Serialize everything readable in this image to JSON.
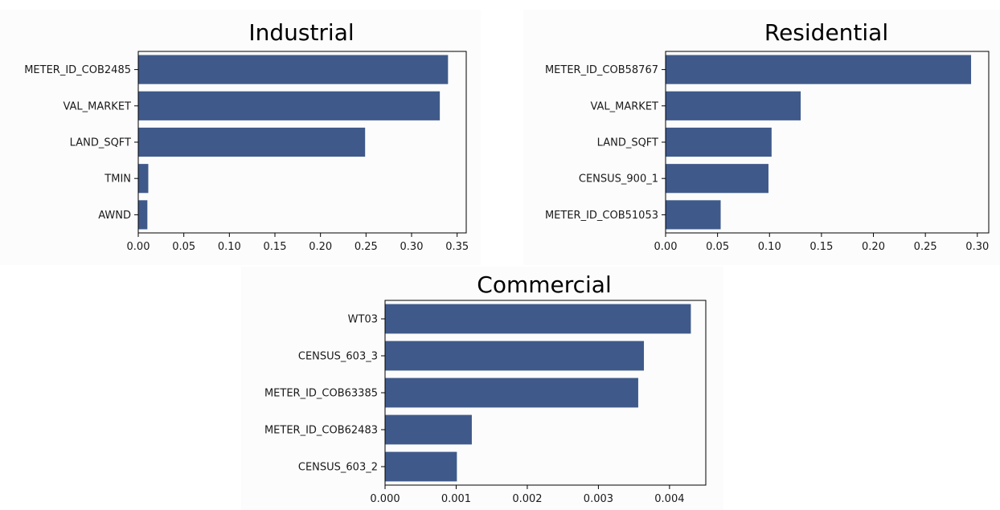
{
  "chart_data": [
    {
      "type": "bar",
      "orientation": "horizontal",
      "title": "Industrial",
      "categories": [
        "METER_ID_COB2485",
        "VAL_MARKET",
        "LAND_SQFT",
        "TMIN",
        "AWND"
      ],
      "values": [
        0.34,
        0.331,
        0.249,
        0.011,
        0.01
      ],
      "xlim": [
        0,
        0.36
      ],
      "xticks": [
        "0.00",
        "0.05",
        "0.10",
        "0.15",
        "0.20",
        "0.25",
        "0.30",
        "0.35"
      ],
      "grid": false,
      "color": "#3f5a8a"
    },
    {
      "type": "bar",
      "orientation": "horizontal",
      "title": "Residential",
      "categories": [
        "METER_ID_COB58767",
        "VAL_MARKET",
        "LAND_SQFT",
        "CENSUS_900_1",
        "METER_ID_COB51053"
      ],
      "values": [
        0.294,
        0.13,
        0.102,
        0.099,
        0.053
      ],
      "xlim": [
        0,
        0.311
      ],
      "xticks": [
        "0.00",
        "0.05",
        "0.10",
        "0.15",
        "0.20",
        "0.25",
        "0.30"
      ],
      "grid": false,
      "color": "#3f5a8a"
    },
    {
      "type": "bar",
      "orientation": "horizontal",
      "title": "Commercial",
      "categories": [
        "WT03",
        "CENSUS_603_3",
        "METER_ID_COB63385",
        "METER_ID_COB62483",
        "CENSUS_603_2"
      ],
      "values": [
        0.0043,
        0.00364,
        0.00356,
        0.00122,
        0.00101
      ],
      "xlim": [
        0,
        0.00451
      ],
      "xticks": [
        "0.000",
        "0.001",
        "0.002",
        "0.003",
        "0.004"
      ],
      "grid": false,
      "color": "#3f5a8a"
    }
  ]
}
